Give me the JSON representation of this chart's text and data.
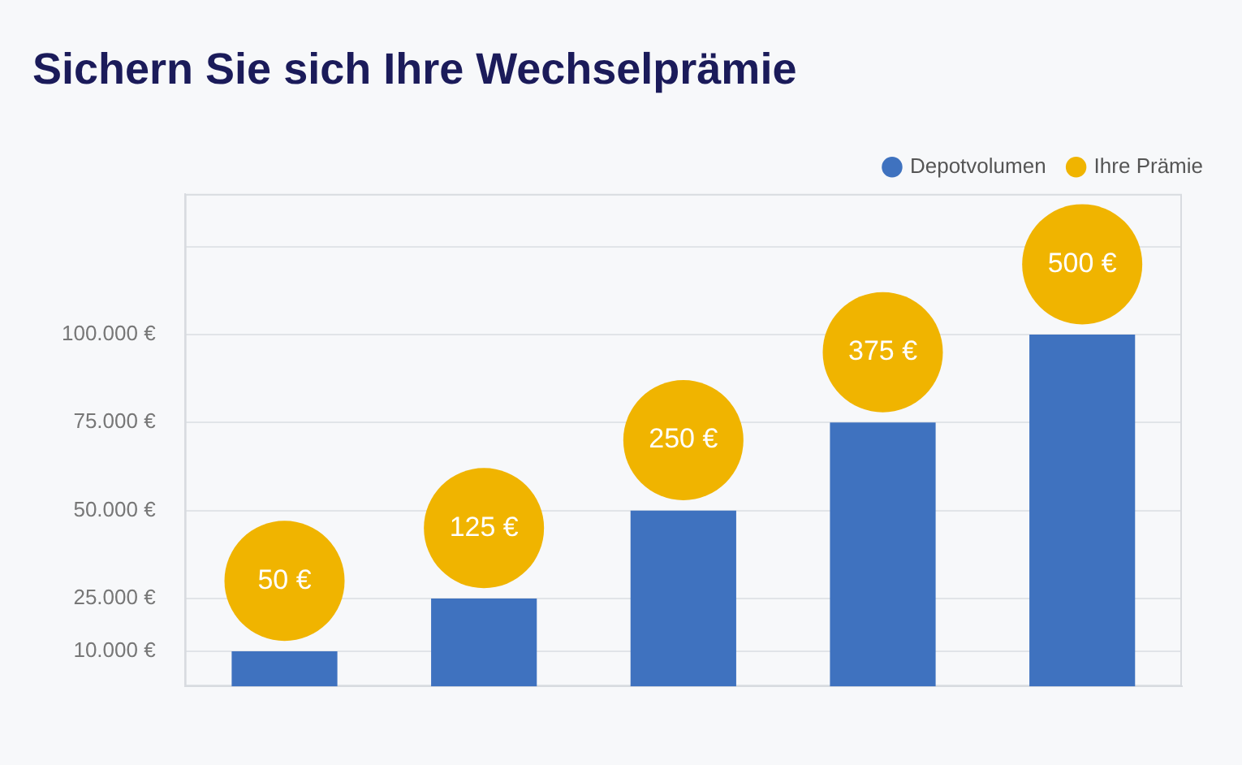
{
  "chart_data": {
    "type": "bar",
    "title": "Sichern Sie sich Ihre Wechselprämie",
    "categories": [
      null,
      null,
      null,
      null,
      null
    ],
    "series": [
      {
        "name": "Depotvolumen",
        "color": "#3f72bf",
        "values": [
          10000,
          25000,
          50000,
          75000,
          100000
        ]
      },
      {
        "name": "Ihre Prämie",
        "type": "scatter",
        "axis": "y2",
        "color": "#f0b400",
        "values": [
          50,
          125,
          250,
          375,
          500
        ],
        "value_labels": [
          "50 €",
          "125 €",
          "250 €",
          "375 €",
          "500 €"
        ]
      }
    ],
    "ylim": [
      0,
      140000
    ],
    "yticks": [
      {
        "value": 10000,
        "label": "10.000 €"
      },
      {
        "value": 25000,
        "label": "25.000 €"
      },
      {
        "value": 50000,
        "label": "50.000 €"
      },
      {
        "value": 75000,
        "label": "75.000 €"
      },
      {
        "value": 100000,
        "label": "100.000 €"
      },
      {
        "value": 125000,
        "label": null
      }
    ],
    "y2lim": [
      -100,
      600
    ],
    "grid": "y",
    "legend": "top right",
    "marker": "circle"
  }
}
